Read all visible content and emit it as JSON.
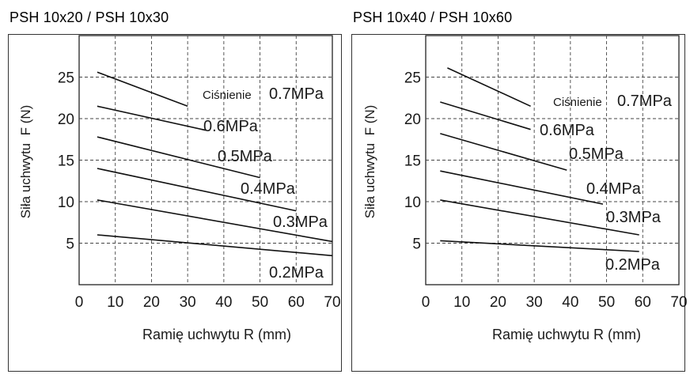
{
  "chart_data": [
    {
      "type": "line",
      "title": "PSH 10x20 / PSH 10x30",
      "xlabel": "Ramię uchwytu R (mm)",
      "ylabel": "Siła uchwytu  F (N)",
      "xlim": [
        0,
        70
      ],
      "ylim": [
        0,
        30
      ],
      "x_ticks": [
        "0",
        "10",
        "20",
        "30",
        "40",
        "50",
        "60",
        "70"
      ],
      "y_ticks": [
        "5",
        "10",
        "15",
        "20",
        "25"
      ],
      "grid": true,
      "annotation": "Ciśnienie",
      "series": [
        {
          "name": "0.7MPa",
          "x": [
            5,
            30
          ],
          "y": [
            25.6,
            21.5
          ]
        },
        {
          "name": "0.6MPa",
          "x": [
            5,
            35
          ],
          "y": [
            21.5,
            18.6
          ]
        },
        {
          "name": "0.5MPa",
          "x": [
            5,
            50
          ],
          "y": [
            17.8,
            12.9
          ]
        },
        {
          "name": "0.4MPa",
          "x": [
            5,
            60
          ],
          "y": [
            14.0,
            8.9
          ]
        },
        {
          "name": "0.3MPa",
          "x": [
            5,
            70
          ],
          "y": [
            10.2,
            5.2
          ]
        },
        {
          "name": "0.2MPa",
          "x": [
            5,
            70
          ],
          "y": [
            6.0,
            3.5
          ]
        }
      ]
    },
    {
      "type": "line",
      "title": "PSH 10x40 / PSH 10x60",
      "xlabel": "Ramię uchwytu R (mm)",
      "ylabel": "Siła uchwytu  F (N)",
      "xlim": [
        0,
        70
      ],
      "ylim": [
        0,
        30
      ],
      "x_ticks": [
        "0",
        "10",
        "20",
        "30",
        "40",
        "50",
        "60",
        "70"
      ],
      "y_ticks": [
        "5",
        "10",
        "15",
        "20",
        "25"
      ],
      "grid": true,
      "annotation": "Ciśnienie",
      "series": [
        {
          "name": "0.7MPa",
          "x": [
            6,
            29
          ],
          "y": [
            26.1,
            21.5
          ]
        },
        {
          "name": "0.6MPa",
          "x": [
            4,
            29
          ],
          "y": [
            22.0,
            18.7
          ]
        },
        {
          "name": "0.5MPa",
          "x": [
            4,
            39
          ],
          "y": [
            18.2,
            13.8
          ]
        },
        {
          "name": "0.4MPa",
          "x": [
            4,
            49
          ],
          "y": [
            13.7,
            9.7
          ]
        },
        {
          "name": "0.3MPa",
          "x": [
            4,
            59
          ],
          "y": [
            10.2,
            6.0
          ]
        },
        {
          "name": "0.2MPa",
          "x": [
            4,
            59
          ],
          "y": [
            5.3,
            4.0
          ]
        }
      ]
    }
  ]
}
